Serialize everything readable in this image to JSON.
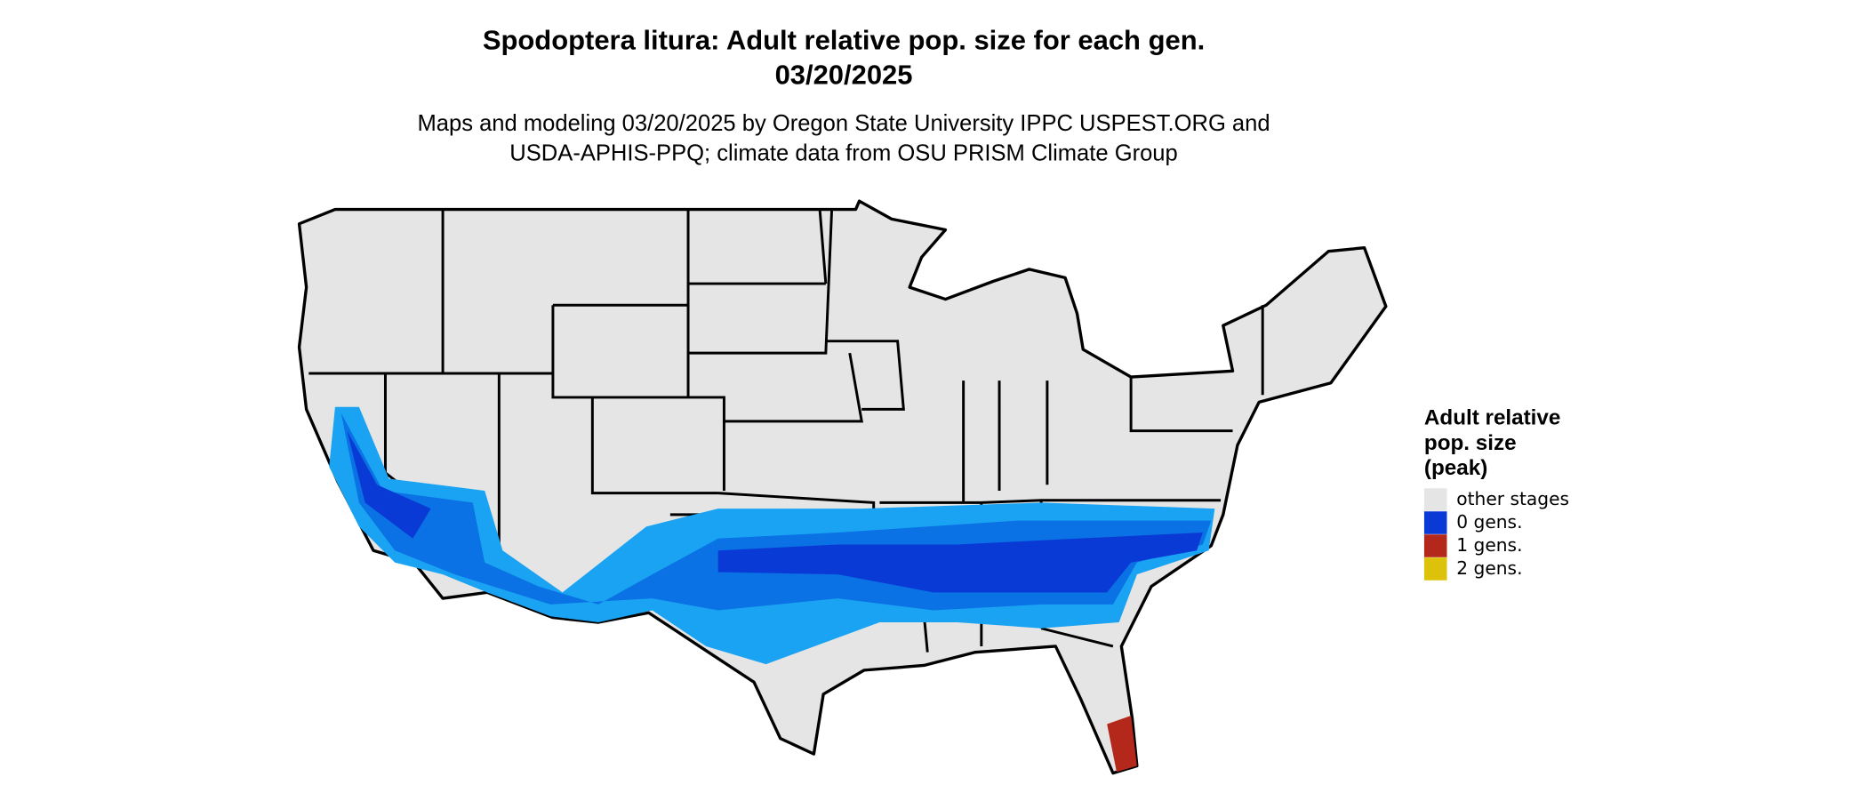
{
  "title": "Spodoptera litura: Adult relative pop. size for each gen.",
  "date": "03/20/2025",
  "subtitle_lines": [
    "Maps and modeling 03/20/2025 by Oregon State University IPPC USPEST.ORG and",
    "USDA-APHIS-PPQ; climate data from OSU PRISM Climate Group"
  ],
  "legend": {
    "title_lines": [
      "Adult relative",
      "pop. size",
      "(peak)"
    ],
    "items": [
      {
        "label": "other stages",
        "color": "#e5e5e5"
      },
      {
        "label": "0 gens.",
        "color": "#0a3ad6"
      },
      {
        "label": "1 gens.",
        "color": "#b3281a"
      },
      {
        "label": "2 gens.",
        "color": "#dcc20a"
      }
    ]
  }
}
